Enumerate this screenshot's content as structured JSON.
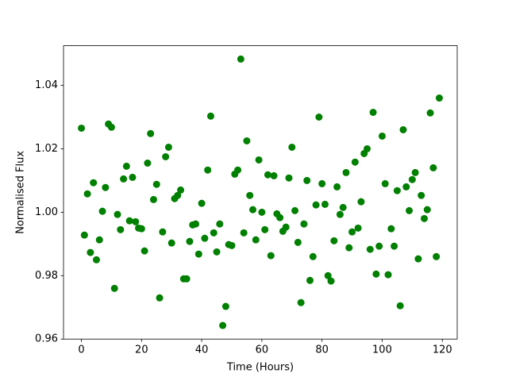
{
  "chart_data": {
    "type": "scatter",
    "x_label": "Time (Hours)",
    "y_label": "Normalised Flux",
    "color": "#008000",
    "xlim": [
      -5.95,
      124.95
    ],
    "ylim": [
      0.96,
      1.0525
    ],
    "xticks": [
      0,
      20,
      40,
      60,
      80,
      100,
      120
    ],
    "yticks": [
      0.96,
      0.98,
      {
        "value": 1.0,
        "label": "1.00"
      },
      1.02,
      1.04
    ],
    "x": [
      0,
      1,
      2,
      3,
      4,
      5,
      6,
      7,
      8,
      9,
      10,
      11,
      12,
      13,
      14,
      15,
      16,
      17,
      18,
      19,
      20,
      21,
      22,
      23,
      24,
      25,
      26,
      27,
      28,
      29,
      30,
      31,
      32,
      33,
      34,
      35,
      36,
      37,
      38,
      39,
      40,
      41,
      42,
      43,
      44,
      45,
      46,
      47,
      48,
      49,
      50,
      51,
      52,
      53,
      54,
      55,
      56,
      57,
      58,
      59,
      60,
      61,
      62,
      63,
      64,
      65,
      66,
      67,
      68,
      69,
      70,
      71,
      72,
      73,
      74,
      75,
      76,
      77,
      78,
      79,
      80,
      81,
      82,
      83,
      84,
      85,
      86,
      87,
      88,
      89,
      90,
      91,
      92,
      93,
      94,
      95,
      96,
      97,
      98,
      99,
      100,
      101,
      102,
      103,
      104,
      105,
      106,
      107,
      108,
      109,
      110,
      111,
      112,
      113,
      114,
      115,
      116,
      117,
      118,
      119
    ],
    "values": [
      1.0265,
      0.9928,
      1.0058,
      0.9873,
      1.0093,
      0.985,
      0.9913,
      1.0003,
      1.0078,
      1.0278,
      1.0268,
      0.976,
      0.9993,
      0.9945,
      1.0105,
      1.0145,
      0.9973,
      1.011,
      0.997,
      0.995,
      0.9948,
      0.9878,
      1.0155,
      1.0248,
      1.004,
      1.0088,
      0.973,
      0.9938,
      1.0175,
      1.0205,
      0.9903,
      1.0043,
      1.0053,
      1.007,
      0.979,
      0.979,
      0.9908,
      0.996,
      0.9963,
      0.9868,
      1.0028,
      0.9918,
      1.0133,
      1.0303,
      0.9935,
      0.9875,
      0.9963,
      0.9643,
      0.9703,
      0.9898,
      0.9895,
      1.012,
      1.0133,
      1.0483,
      0.9935,
      1.0225,
      1.0053,
      1.0008,
      0.9913,
      1.0165,
      1.0,
      0.9945,
      1.0118,
      0.9863,
      1.0115,
      0.9995,
      0.9983,
      0.994,
      0.9953,
      1.0108,
      1.0205,
      1.0005,
      0.9905,
      0.9715,
      0.9963,
      1.01,
      0.9785,
      0.986,
      1.0023,
      1.03,
      1.009,
      1.0025,
      0.98,
      0.9783,
      0.991,
      1.008,
      0.9993,
      1.0015,
      1.0125,
      0.9888,
      0.9938,
      1.0158,
      0.995,
      1.0033,
      1.0185,
      1.02,
      0.9883,
      1.0315,
      0.9805,
      0.9893,
      1.024,
      1.009,
      0.9803,
      0.9948,
      0.9893,
      1.0068,
      0.9705,
      1.026,
      1.008,
      1.0005,
      1.0103,
      1.0125,
      0.9853,
      1.0053,
      0.998,
      1.0008,
      1.0313,
      1.014,
      0.986,
      1.036
    ]
  }
}
